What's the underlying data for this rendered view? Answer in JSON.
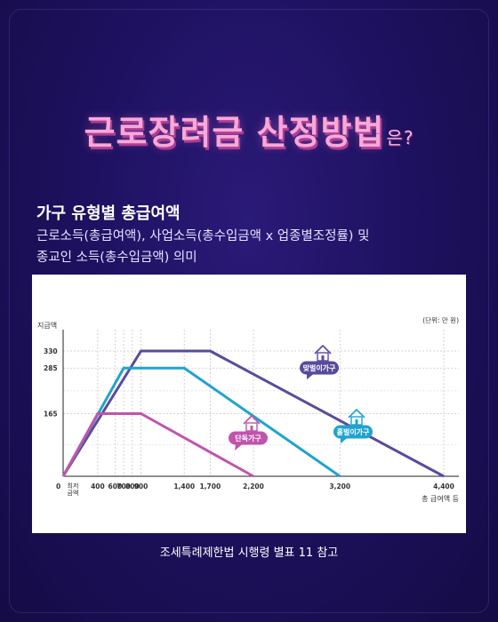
{
  "header": {
    "title": "근로장려금 산정방법",
    "title_suffix": "은?"
  },
  "subheading": "가구 유형별 총급여액",
  "description": [
    "근로소득(총급여액), 사업소득(총수입금액 x 업종별조정률) 및",
    "종교인 소득(총수입금액) 의미"
  ],
  "source_note": "조세특례제한법 시행령 별표 11 참고",
  "chart_data": {
    "type": "line",
    "ylabel": "지급액",
    "xlabel": "총 급여액 등",
    "unit_note": "(단위: 만 원)",
    "origin_label": "0",
    "min_label": "최저\n금액",
    "x_ticks": [
      400,
      600,
      700,
      800,
      900,
      1400,
      1700,
      2200,
      3200,
      4400
    ],
    "x_tick_labels": [
      "400",
      "600",
      "700",
      "800",
      "900",
      "1,400",
      "1,700",
      "2,200",
      "3,200",
      "4,400"
    ],
    "y_ticks": [
      165,
      285,
      330
    ],
    "y_tick_labels": [
      "165",
      "285",
      "330"
    ],
    "xlim": [
      0,
      4400
    ],
    "ylim": [
      0,
      330
    ],
    "series": [
      {
        "name": "맞벌이가구",
        "color": "#5a4a9e",
        "icon": "house-icon",
        "x": [
          0,
          900,
          1700,
          4400
        ],
        "y": [
          0,
          330,
          330,
          0
        ]
      },
      {
        "name": "홑벌이가구",
        "color": "#1fa3cf",
        "icon": "house-icon",
        "x": [
          0,
          700,
          1400,
          3200
        ],
        "y": [
          0,
          285,
          285,
          0
        ]
      },
      {
        "name": "단독가구",
        "color": "#c054ac",
        "icon": "house-icon",
        "x": [
          0,
          400,
          900,
          2200
        ],
        "y": [
          0,
          165,
          165,
          0
        ]
      }
    ]
  }
}
